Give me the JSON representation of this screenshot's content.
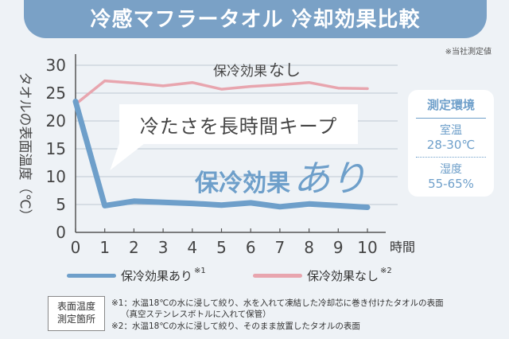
{
  "header": {
    "title": "冷感マフラータオル 冷却効果比較"
  },
  "note": "※当社測定値",
  "callout": "冷たさを長時間キープ",
  "annotation_ari": {
    "main": "保冷効果",
    "emphasis": "あり"
  },
  "annotation_nashi": {
    "main": "保冷効果",
    "emphasis": "なし"
  },
  "environment": {
    "title": "測定環境",
    "room_label": "室温",
    "room_value": "28-30℃",
    "humidity_label": "湿度",
    "humidity_value": "55-65%"
  },
  "legend": [
    {
      "name": "保冷効果あり",
      "sup": "※1",
      "color": "#6e9fca"
    },
    {
      "name": "保冷効果なし",
      "sup": "※2",
      "color": "#e8a5ae"
    }
  ],
  "location_box": {
    "line1": "表面温度",
    "line2": "測定箇所"
  },
  "footnotes": {
    "fn1_line1": "※1：水温18℃の水に浸して絞り、水を入れて凍結した冷却芯に巻き付けたタオルの表面",
    "fn1_line2": "（真空ステンレスボトルに入れて保管）",
    "fn2": "※2：水温18℃の水に浸して絞り、そのまま放置したタオルの表面"
  },
  "chart_data": {
    "type": "line",
    "x": [
      0,
      1,
      2,
      3,
      4,
      5,
      6,
      7,
      8,
      9,
      10
    ],
    "xlabel": "時間",
    "ylabel": "タオルの表面温度（℃）",
    "xlim": [
      0,
      10
    ],
    "ylim": [
      0,
      30
    ],
    "x_ticks": [
      "0",
      "1",
      "2",
      "3",
      "4",
      "5",
      "6",
      "7",
      "8",
      "9",
      "10"
    ],
    "y_ticks": [
      "0",
      "5",
      "10",
      "15",
      "20",
      "25",
      "30"
    ],
    "grid": true,
    "series": [
      {
        "name": "保冷効果あり",
        "color": "#6e9fca",
        "values": [
          23.5,
          4.8,
          5.6,
          5.4,
          5.2,
          4.9,
          5.3,
          4.6,
          5.1,
          4.8,
          4.5
        ]
      },
      {
        "name": "保冷効果なし",
        "color": "#e8a5ae",
        "values": [
          23.0,
          27.2,
          26.8,
          26.3,
          26.9,
          25.7,
          26.2,
          26.5,
          26.9,
          25.9,
          25.8
        ]
      }
    ]
  }
}
